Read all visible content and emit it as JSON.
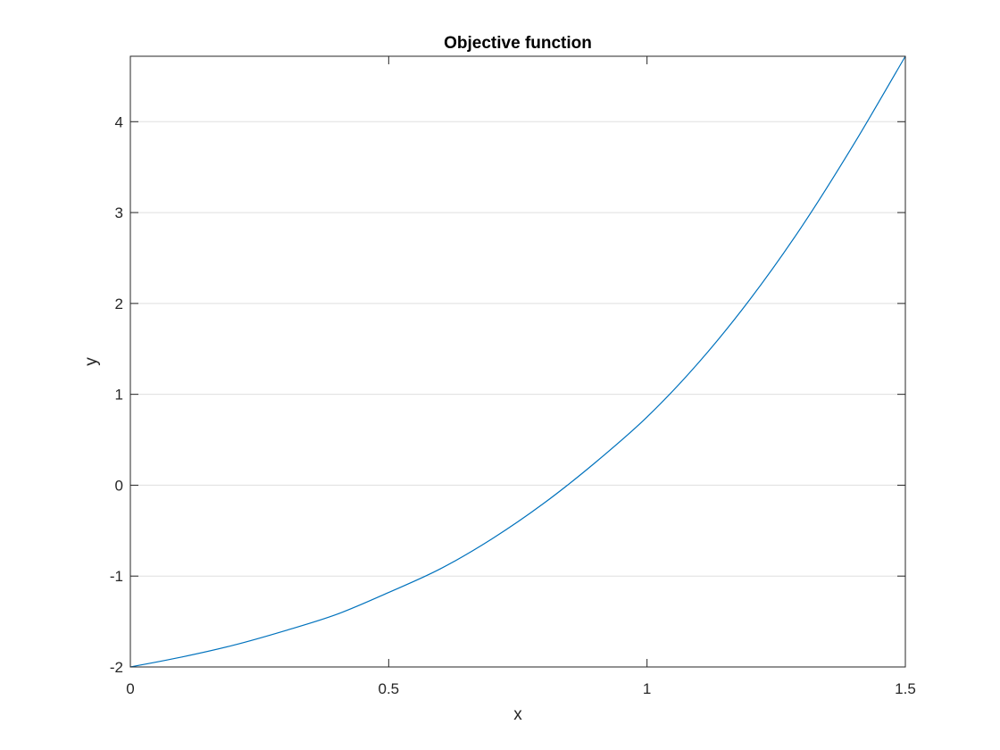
{
  "chart_data": {
    "type": "line",
    "title": "Objective function",
    "xlabel": "x",
    "ylabel": "y",
    "xlim": [
      0,
      1.5
    ],
    "ylim": [
      -2,
      4.72
    ],
    "xticks": [
      0,
      0.5,
      1,
      1.5
    ],
    "xtick_labels": [
      "0",
      "0.5",
      "1",
      "1.5"
    ],
    "yticks": [
      -2,
      -1,
      0,
      1,
      2,
      3,
      4
    ],
    "ytick_labels": [
      "-2",
      "-1",
      "0",
      "1",
      "2",
      "3",
      "4"
    ],
    "grid": "y-major",
    "legend": "none",
    "series": [
      {
        "color": "#0072BD",
        "x": [
          0,
          0.1,
          0.2,
          0.3,
          0.4,
          0.5,
          0.6,
          0.7,
          0.8,
          0.9,
          1.0,
          1.1,
          1.2,
          1.3,
          1.4,
          1.5
        ],
        "y": [
          -2.0,
          -1.89,
          -1.76,
          -1.6,
          -1.42,
          -1.18,
          -0.92,
          -0.59,
          -0.2,
          0.25,
          0.75,
          1.35,
          2.05,
          2.85,
          3.75,
          4.72
        ]
      }
    ]
  },
  "colors": {
    "line": "#0072BD",
    "axes": "#262626",
    "grid": "#dfdfdf"
  }
}
